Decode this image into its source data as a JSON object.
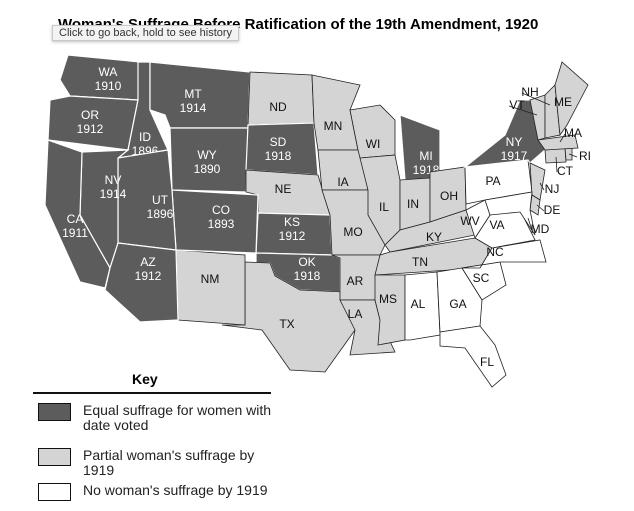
{
  "title": "Woman's Suffrage Before Ratification of the 19th Amendment, 1920",
  "tooltip": "Click to go back, hold to see history",
  "key": {
    "title": "Key",
    "items": [
      {
        "label": "Equal suffrage for women with date voted",
        "color": "#5c5c5c"
      },
      {
        "label": "Partial woman's suffrage by 1919",
        "color": "#d4d4d4"
      },
      {
        "label": "No woman's suffrage by 1919",
        "color": "#ffffff"
      }
    ]
  },
  "states": [
    {
      "abbr": "WA",
      "year": "1910",
      "key": 0
    },
    {
      "abbr": "OR",
      "year": "1912",
      "key": 0
    },
    {
      "abbr": "ID",
      "year": "1896",
      "key": 0
    },
    {
      "abbr": "MT",
      "year": "1914",
      "key": 0
    },
    {
      "abbr": "WY",
      "year": "1890",
      "key": 0
    },
    {
      "abbr": "ND",
      "key": 1
    },
    {
      "abbr": "SD",
      "year": "1918",
      "key": 0
    },
    {
      "abbr": "NE",
      "key": 1
    },
    {
      "abbr": "KS",
      "year": "1912",
      "key": 0
    },
    {
      "abbr": "OK",
      "year": "1918",
      "key": 0
    },
    {
      "abbr": "TX",
      "key": 1
    },
    {
      "abbr": "NM",
      "key": 1
    },
    {
      "abbr": "CO",
      "year": "1893",
      "key": 0
    },
    {
      "abbr": "UT",
      "year": "1896",
      "key": 0
    },
    {
      "abbr": "NV",
      "year": "1914",
      "key": 0
    },
    {
      "abbr": "CA",
      "year": "1911",
      "key": 0
    },
    {
      "abbr": "AZ",
      "year": "1912",
      "key": 0
    },
    {
      "abbr": "MN",
      "key": 1
    },
    {
      "abbr": "IA",
      "key": 1
    },
    {
      "abbr": "MO",
      "key": 1
    },
    {
      "abbr": "AR",
      "key": 1
    },
    {
      "abbr": "LA",
      "key": 1
    },
    {
      "abbr": "WI",
      "key": 1
    },
    {
      "abbr": "IL",
      "key": 1
    },
    {
      "abbr": "MI",
      "year": "1918",
      "key": 0
    },
    {
      "abbr": "IN",
      "key": 1
    },
    {
      "abbr": "OH",
      "key": 1
    },
    {
      "abbr": "KY",
      "key": 1
    },
    {
      "abbr": "TN",
      "key": 1
    },
    {
      "abbr": "MS",
      "key": 1
    },
    {
      "abbr": "AL",
      "key": 2
    },
    {
      "abbr": "GA",
      "key": 2
    },
    {
      "abbr": "FL",
      "key": 2
    },
    {
      "abbr": "SC",
      "key": 2
    },
    {
      "abbr": "NC",
      "key": 2
    },
    {
      "abbr": "VA",
      "key": 2
    },
    {
      "abbr": "WV",
      "key": 2
    },
    {
      "abbr": "PA",
      "key": 2
    },
    {
      "abbr": "NY",
      "year": "1917",
      "key": 0
    },
    {
      "abbr": "NJ",
      "key": 1
    },
    {
      "abbr": "DE",
      "key": 1
    },
    {
      "abbr": "MD",
      "key": 2
    },
    {
      "abbr": "CT",
      "key": 1
    },
    {
      "abbr": "RI",
      "key": 1
    },
    {
      "abbr": "MA",
      "key": 1
    },
    {
      "abbr": "VT",
      "key": 1
    },
    {
      "abbr": "NH",
      "key": 1
    },
    {
      "abbr": "ME",
      "key": 1
    }
  ]
}
